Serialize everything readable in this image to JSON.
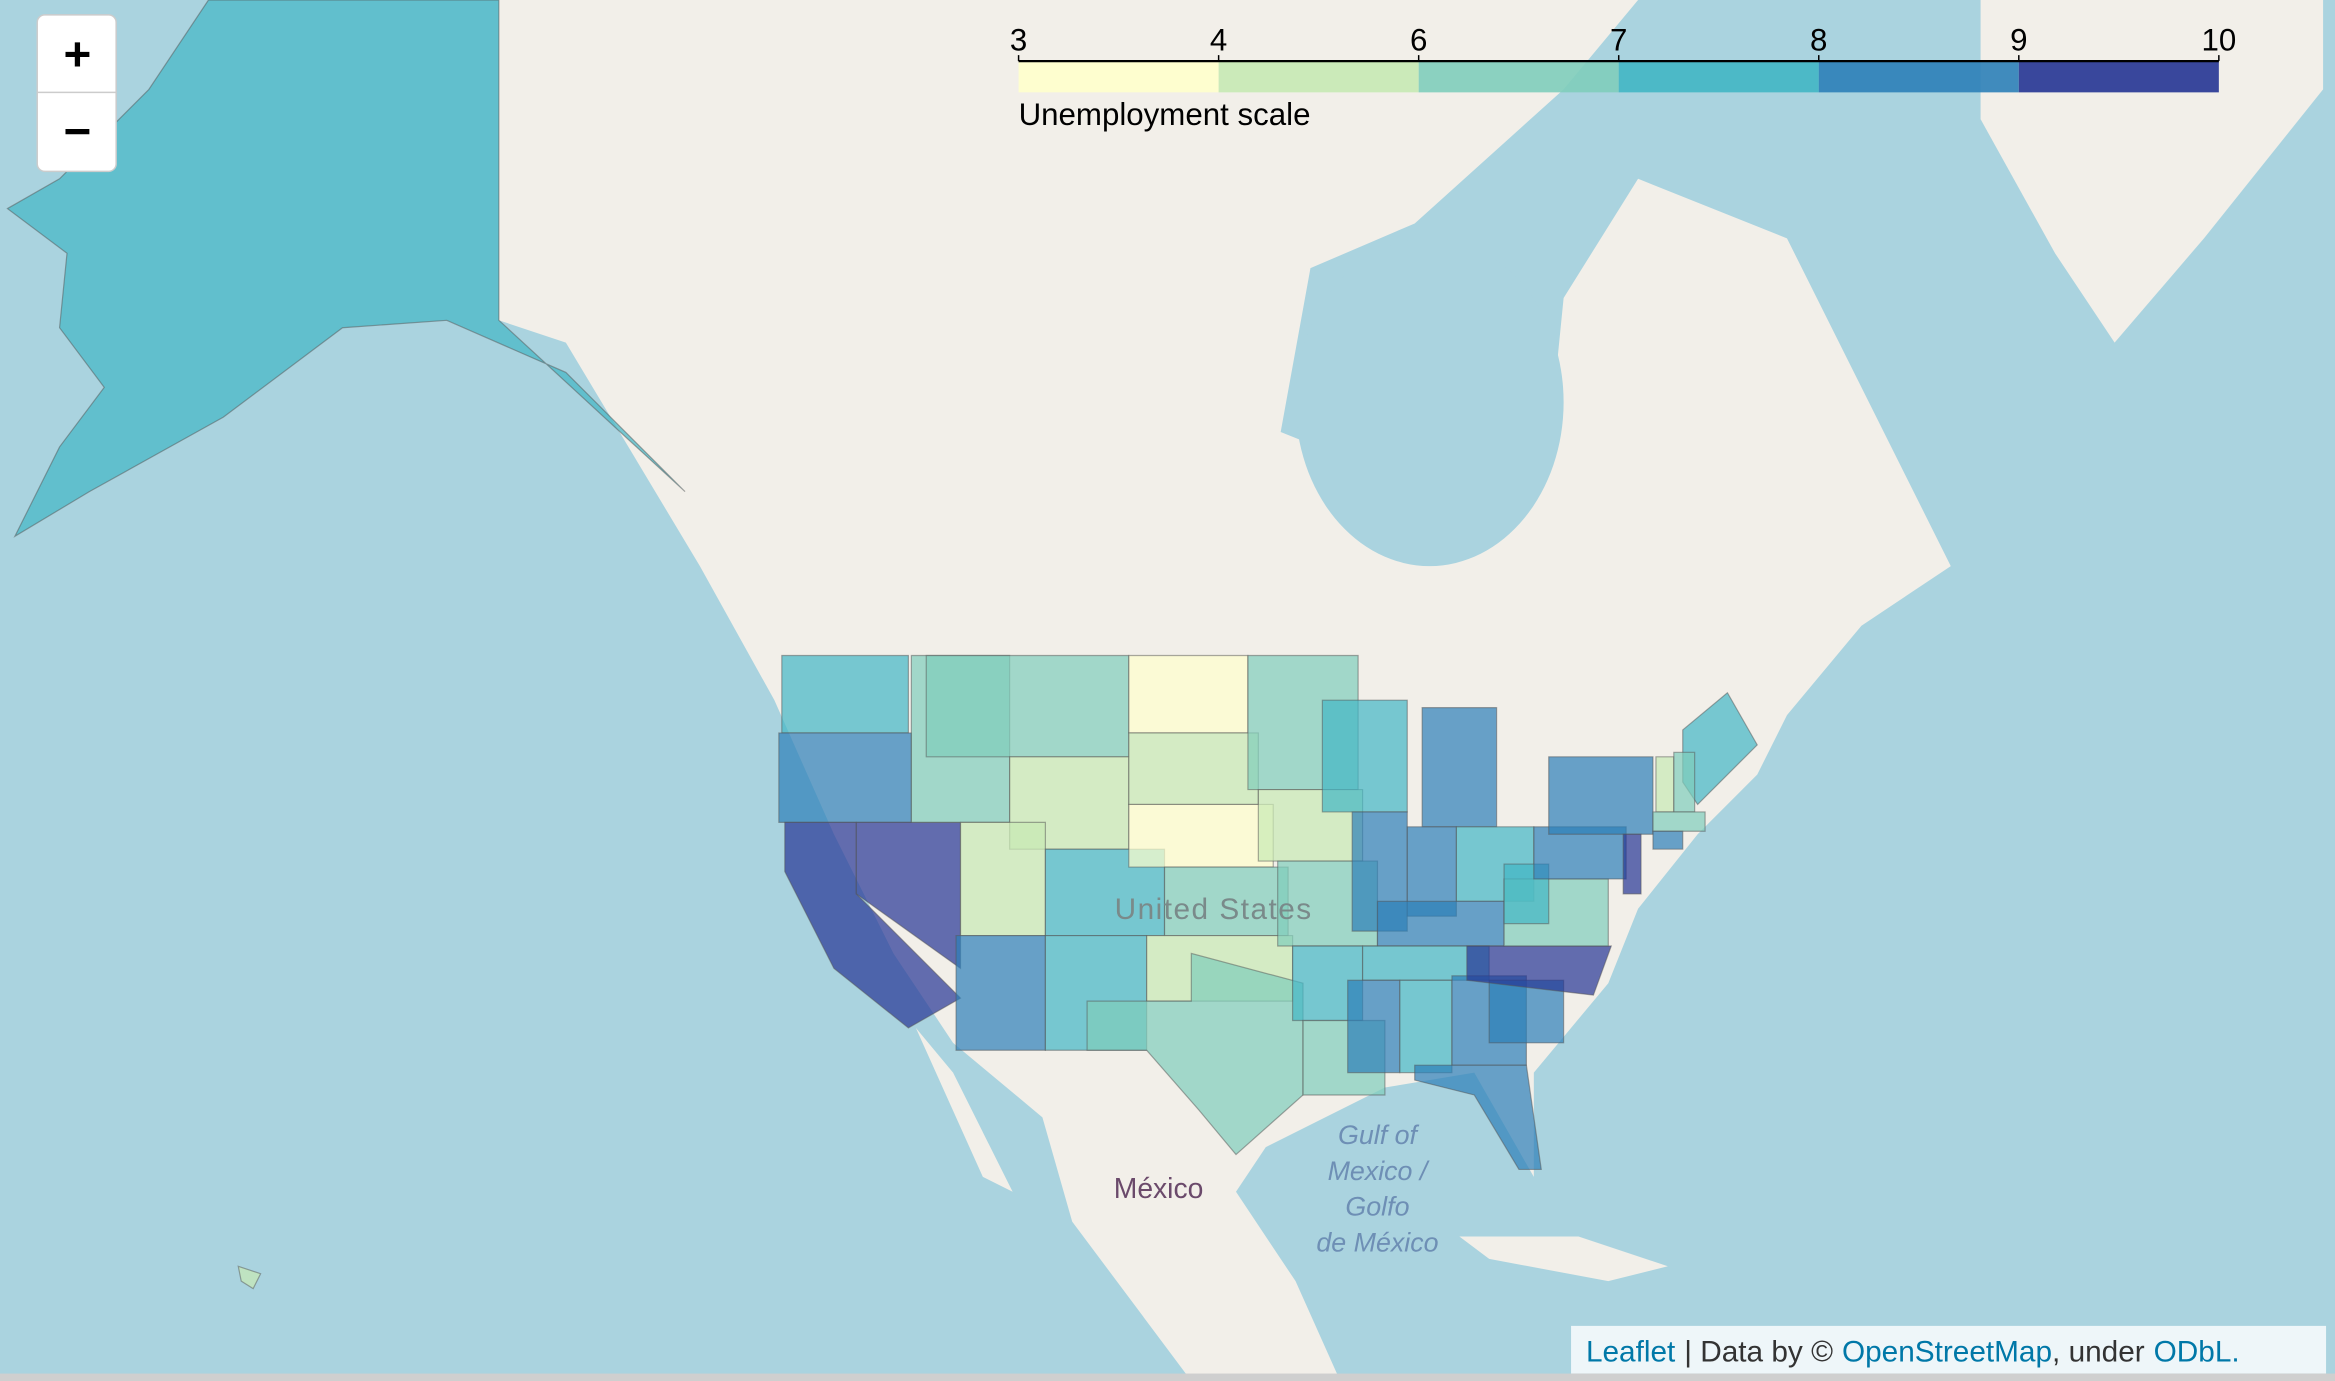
{
  "map": {
    "zoom": {
      "in": "+",
      "out": "−"
    },
    "legend": {
      "title": "Unemployment scale",
      "ticks": [
        3,
        4,
        6,
        7,
        8,
        9,
        10
      ],
      "colors": [
        "#ffffcc",
        "#c7e9b4",
        "#7fcdbb",
        "#41b6c4",
        "#2c7fb8",
        "#253494"
      ]
    },
    "regions": {
      "values": [
        7.5,
        8.5,
        9.5,
        9.5,
        6.5,
        6.5,
        5,
        5,
        8.5,
        7.5,
        7.5,
        3.5,
        4.5,
        3.5,
        6.5,
        5,
        6.5,
        6.5,
        5,
        6.5,
        7.5,
        6.5,
        7.5,
        8.5,
        8.5,
        8.5,
        7.5,
        8.5,
        7.5,
        8.5,
        7.5,
        8.5,
        8.5,
        8.5,
        9.5,
        6.5,
        7.5,
        8.5,
        8.5,
        9.5,
        7.5,
        4.5,
        6.5,
        6.5,
        8.5,
        7.5,
        5
      ]
    },
    "labels": {
      "country": "United States",
      "mexico": "México",
      "gulf": [
        "Gulf of",
        "Mexico /",
        "Golfo",
        "de México"
      ]
    },
    "attribution": {
      "leaflet": "Leaflet",
      "data_by": "| Data by ©",
      "osm": "OpenStreetMap",
      "under": ", under",
      "license": "ODbL."
    }
  }
}
